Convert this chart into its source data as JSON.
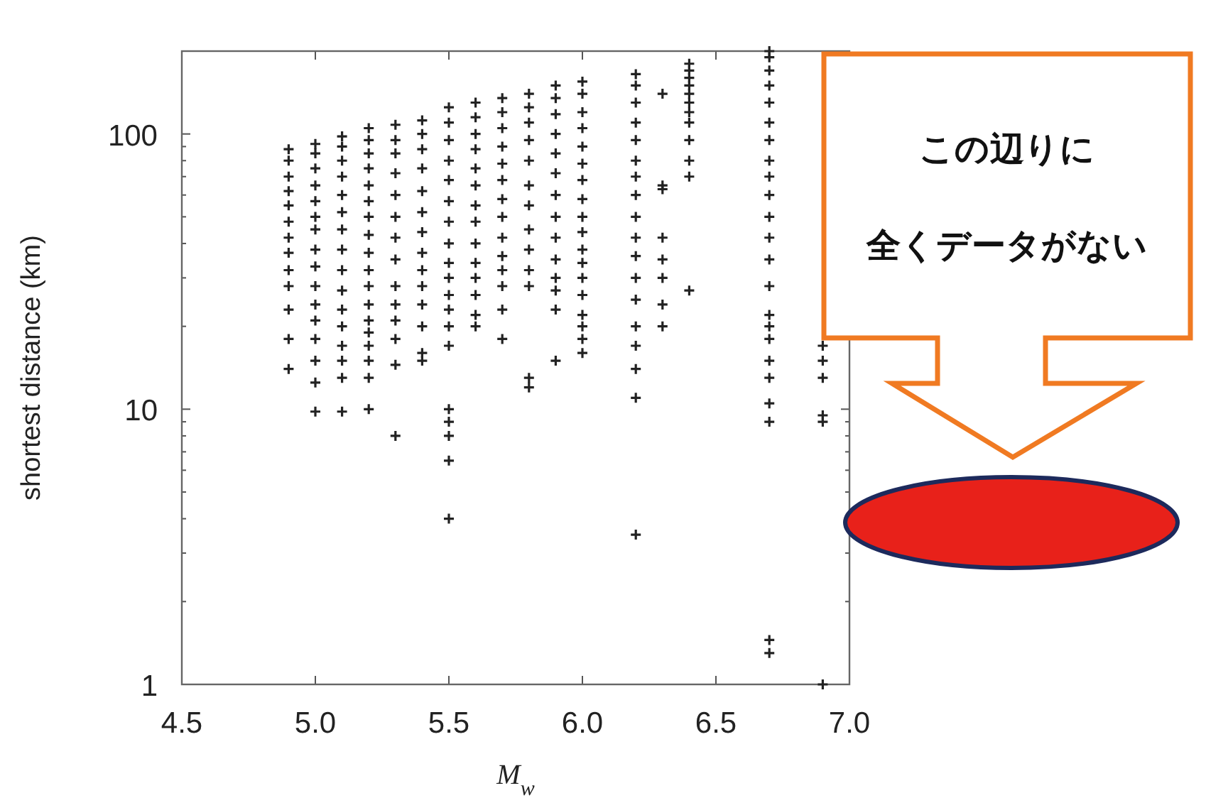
{
  "chart_data": {
    "type": "scatter",
    "xlabel": "M$_{w}$",
    "ylabel": "shortest distance (km)",
    "log": "y",
    "grid": false,
    "marker": "cross",
    "xlim": [
      4.5,
      7.0
    ],
    "xticks": [
      {
        "value": 4.5,
        "label": "4.5"
      },
      {
        "value": 5,
        "label": "5.0"
      },
      {
        "value": 5.5,
        "label": "5.5"
      },
      {
        "value": 6,
        "label": "6.0"
      },
      {
        "value": 6.5,
        "label": "6.5"
      },
      {
        "value": 7,
        "label": "7.0"
      }
    ],
    "ylim": [
      1,
      200
    ],
    "yticks": [
      1,
      10,
      100
    ],
    "annotations": [
      "この辺りに",
      "全くデータがない"
    ],
    "series": [
      {
        "color": "#222222",
        "x": [
          4.9,
          4.9,
          4.9,
          4.9,
          4.9,
          4.9,
          4.9,
          4.9,
          4.9,
          4.9,
          4.9,
          4.9,
          4.9,
          5.0,
          5.0,
          5.0,
          5.0,
          5.0,
          5.0,
          5.0,
          5.0,
          5.0,
          5.0,
          5.0,
          5.0,
          5.0,
          5.0,
          5.0,
          5.0,
          5.1,
          5.1,
          5.1,
          5.1,
          5.1,
          5.1,
          5.1,
          5.1,
          5.1,
          5.1,
          5.1,
          5.1,
          5.1,
          5.1,
          5.1,
          5.1,
          5.2,
          5.2,
          5.2,
          5.2,
          5.2,
          5.2,
          5.2,
          5.2,
          5.2,
          5.2,
          5.2,
          5.2,
          5.2,
          5.2,
          5.2,
          5.2,
          5.2,
          5.2,
          5.3,
          5.3,
          5.3,
          5.3,
          5.3,
          5.3,
          5.3,
          5.3,
          5.3,
          5.3,
          5.3,
          5.3,
          5.3,
          5.3,
          5.4,
          5.4,
          5.4,
          5.4,
          5.4,
          5.4,
          5.4,
          5.4,
          5.4,
          5.4,
          5.4,
          5.4,
          5.4,
          5.4,
          5.5,
          5.5,
          5.5,
          5.5,
          5.5,
          5.5,
          5.5,
          5.5,
          5.5,
          5.5,
          5.5,
          5.5,
          5.5,
          5.5,
          5.5,
          5.5,
          5.5,
          5.5,
          5.5,
          5.6,
          5.6,
          5.6,
          5.6,
          5.6,
          5.6,
          5.6,
          5.6,
          5.6,
          5.6,
          5.6,
          5.6,
          5.6,
          5.6,
          5.7,
          5.7,
          5.7,
          5.7,
          5.7,
          5.7,
          5.7,
          5.7,
          5.7,
          5.7,
          5.7,
          5.7,
          5.7,
          5.7,
          5.8,
          5.8,
          5.8,
          5.8,
          5.8,
          5.8,
          5.8,
          5.8,
          5.8,
          5.8,
          5.8,
          5.8,
          5.8,
          5.9,
          5.9,
          5.9,
          5.9,
          5.9,
          5.9,
          5.9,
          5.9,
          5.9,
          5.9,
          5.9,
          5.9,
          5.9,
          5.9,
          6.0,
          6.0,
          6.0,
          6.0,
          6.0,
          6.0,
          6.0,
          6.0,
          6.0,
          6.0,
          6.0,
          6.0,
          6.0,
          6.0,
          6.0,
          6.0,
          6.0,
          6.0,
          6.2,
          6.2,
          6.2,
          6.2,
          6.2,
          6.2,
          6.2,
          6.2,
          6.2,
          6.2,
          6.2,
          6.2,
          6.2,
          6.2,
          6.2,
          6.2,
          6.2,
          6.2,
          6.3,
          6.3,
          6.3,
          6.3,
          6.3,
          6.3,
          6.3,
          6.3,
          6.4,
          6.4,
          6.4,
          6.4,
          6.4,
          6.4,
          6.4,
          6.4,
          6.4,
          6.4,
          6.4,
          6.4,
          6.7,
          6.7,
          6.7,
          6.7,
          6.7,
          6.7,
          6.7,
          6.7,
          6.7,
          6.7,
          6.7,
          6.7,
          6.7,
          6.7,
          6.7,
          6.7,
          6.7,
          6.7,
          6.7,
          6.7,
          6.7,
          6.7,
          6.7,
          6.9,
          6.9,
          6.9,
          6.9,
          6.9,
          6.9
        ],
        "values": [
          88,
          80,
          70,
          62,
          55,
          48,
          42,
          37,
          32,
          28,
          23,
          18,
          14,
          92,
          85,
          75,
          65,
          57,
          50,
          45,
          38,
          33,
          28,
          24,
          21,
          18,
          15,
          12.5,
          9.8,
          98,
          90,
          80,
          70,
          60,
          52,
          45,
          38,
          32,
          27,
          23,
          20,
          17,
          15,
          13,
          9.8,
          105,
          95,
          85,
          75,
          65,
          57,
          50,
          43,
          37,
          32,
          28,
          24,
          21,
          19,
          17,
          15,
          13,
          10,
          108,
          95,
          85,
          72,
          60,
          50,
          42,
          35,
          28,
          24,
          21,
          18,
          14.5,
          8,
          112,
          100,
          88,
          75,
          62,
          52,
          44,
          37,
          32,
          28,
          24,
          20,
          16,
          15,
          125,
          110,
          95,
          80,
          68,
          57,
          48,
          40,
          34,
          30,
          26,
          23,
          20,
          17,
          10,
          9,
          8,
          6.5,
          4,
          130,
          115,
          100,
          88,
          75,
          65,
          55,
          48,
          40,
          34,
          30,
          26,
          22,
          20,
          135,
          120,
          105,
          90,
          78,
          68,
          58,
          50,
          42,
          36,
          32,
          28,
          23,
          18,
          140,
          125,
          110,
          95,
          80,
          65,
          55,
          45,
          38,
          32,
          28,
          13,
          12,
          150,
          135,
          118,
          100,
          85,
          72,
          60,
          50,
          42,
          35,
          30,
          27,
          23,
          15,
          155,
          140,
          120,
          105,
          90,
          78,
          68,
          58,
          50,
          44,
          38,
          34,
          30,
          26,
          22,
          20,
          18,
          16,
          165,
          150,
          130,
          110,
          95,
          80,
          70,
          60,
          50,
          42,
          36,
          30,
          25,
          20,
          17,
          14,
          11,
          3.5,
          140,
          65,
          63,
          42,
          35,
          30,
          24,
          20,
          180,
          170,
          160,
          150,
          140,
          130,
          120,
          110,
          95,
          80,
          70,
          27,
          200,
          190,
          170,
          150,
          130,
          110,
          95,
          80,
          70,
          60,
          50,
          42,
          35,
          28,
          22,
          20,
          18,
          15,
          13,
          10.5,
          9,
          1.45,
          1.3,
          17,
          15,
          13,
          9.5,
          9,
          1
        ]
      }
    ]
  }
}
